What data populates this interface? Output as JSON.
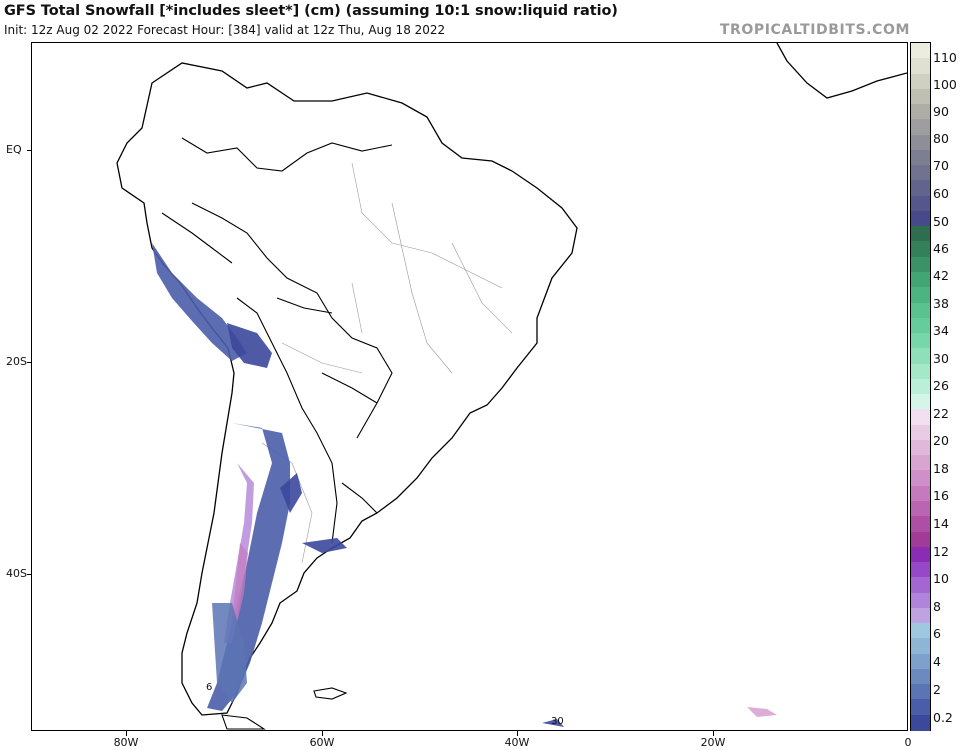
{
  "header": {
    "title": "GFS Total Snowfall [*includes sleet*] (cm) (assuming 10:1 snow:liquid ratio)",
    "subtitle": "Init: 12z Aug 02 2022   Forecast Hour: [384]   valid at 12z Thu, Aug 18 2022",
    "brand": "TROPICALTIDBITS.COM"
  },
  "axes": {
    "lat_labels": [
      "EQ",
      "20S",
      "40S"
    ],
    "lon_labels": [
      "80W",
      "60W",
      "40W",
      "20W",
      "0"
    ]
  },
  "map_labels": {
    "contour_6": "6",
    "contour_30": "30"
  },
  "colorbar": {
    "labels": [
      "110",
      "100",
      "90",
      "80",
      "70",
      "60",
      "50",
      "46",
      "42",
      "38",
      "34",
      "30",
      "26",
      "22",
      "20",
      "18",
      "16",
      "14",
      "12",
      "10",
      "8",
      "6",
      "4",
      "2",
      "0.2"
    ],
    "colors": [
      "#ececdf",
      "#e0e0d2",
      "#d0d0c2",
      "#c0c0b2",
      "#aeaea6",
      "#9e9ea0",
      "#8e8e98",
      "#7e7e92",
      "#707290",
      "#62648e",
      "#54568c",
      "#464a8a",
      "#2e6e4e",
      "#33805a",
      "#3a9266",
      "#43a474",
      "#4cb480",
      "#59c28e",
      "#66cc9c",
      "#78d6ab",
      "#8edfba",
      "#a4e8c9",
      "#bcefd8",
      "#d4f6e8",
      "#f2dff0",
      "#eacbe6",
      "#e0b8dc",
      "#d8a4d2",
      "#cf8fc8",
      "#c47abd",
      "#b965b1",
      "#ad4fa4",
      "#a23a98",
      "#8a2cb4",
      "#9748c6",
      "#a466d0",
      "#b084da",
      "#bea2e2",
      "#9ec8e0",
      "#8eb4d6",
      "#7ea0cc",
      "#6c8ac0",
      "#5a74b4",
      "#4a5ea8",
      "#3c489c"
    ]
  }
}
